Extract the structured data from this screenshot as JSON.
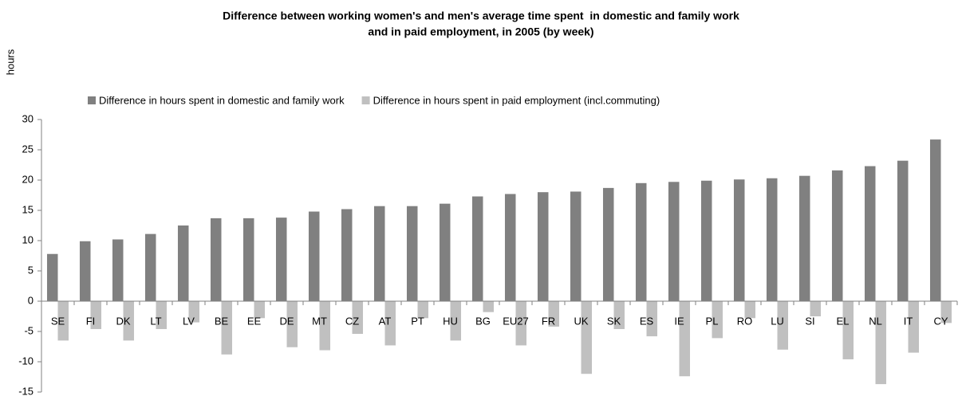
{
  "chart_data": {
    "type": "bar",
    "title": [
      "Difference between working women's and men's average time spent  in domestic and family work",
      "and in paid employment, in 2005 (by week)"
    ],
    "y_label": "hours",
    "categories": [
      "SE",
      "FI",
      "DK",
      "LT",
      "LV",
      "BE",
      "EE",
      "DE",
      "MT",
      "CZ",
      "AT",
      "PT",
      "HU",
      "BG",
      "EU27",
      "FR",
      "UK",
      "SK",
      "ES",
      "IE",
      "PL",
      "RO",
      "LU",
      "SI",
      "EL",
      "NL",
      "IT",
      "CY"
    ],
    "series": [
      {
        "name": "Difference in hours spent in domestic and family work",
        "color": "#808080",
        "values": [
          7.8,
          9.9,
          10.2,
          11.1,
          12.5,
          13.7,
          13.7,
          13.8,
          14.8,
          15.2,
          15.7,
          15.7,
          16.1,
          17.3,
          17.7,
          18.0,
          18.1,
          18.7,
          19.5,
          19.7,
          19.9,
          20.1,
          20.3,
          20.7,
          21.6,
          22.3,
          23.2,
          26.7
        ]
      },
      {
        "name": "Difference in hours spent in paid employment (incl.commuting)",
        "color": "#c0c0c0",
        "values": [
          -6.5,
          -4.6,
          -6.5,
          -4.6,
          -3.5,
          -8.8,
          -2.8,
          -7.6,
          -8.1,
          -5.4,
          -7.3,
          -2.8,
          -6.5,
          -1.8,
          -7.3,
          -4.2,
          -12.0,
          -4.6,
          -5.8,
          -12.4,
          -6.1,
          -2.8,
          -8.0,
          -2.5,
          -9.6,
          -13.7,
          -8.5,
          -3.6
        ]
      }
    ],
    "ylim": [
      -15,
      30
    ],
    "yticks": [
      -15,
      -10,
      -5,
      0,
      5,
      10,
      15,
      20,
      25,
      30
    ],
    "grid": false,
    "legend": "top"
  }
}
